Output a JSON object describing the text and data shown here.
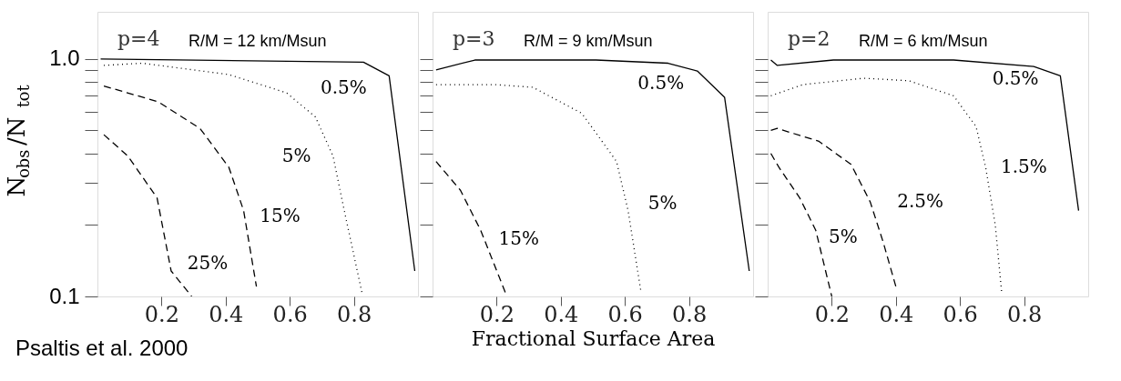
{
  "chart_data": [
    {
      "type": "line",
      "title": "p=4",
      "subtitle": "R/M = 12 km/Msun",
      "ylabel": "N$_{obs}$/N$_{tot}$",
      "xlim": [
        0,
        1
      ],
      "ylim": [
        0.1,
        1.58
      ],
      "log": "y",
      "grid": false,
      "xticks": [
        0.2,
        0.4,
        0.6,
        0.8
      ],
      "yticks": [
        {
          "value": 0.1,
          "label": "0.1"
        },
        {
          "value": 0.2,
          "label": null
        },
        {
          "value": 0.3,
          "label": null
        },
        {
          "value": 0.4,
          "label": null
        },
        {
          "value": 0.5,
          "label": null
        },
        {
          "value": 0.6,
          "label": null
        },
        {
          "value": 0.7,
          "label": null
        },
        {
          "value": 0.8,
          "label": null
        },
        {
          "value": 0.9,
          "label": null
        },
        {
          "value": 1,
          "label": "1.0"
        }
      ],
      "series": [
        {
          "name": "0.5%",
          "color": "#000000",
          "line_style": "solid",
          "x": [
            0.01,
            0.83,
            0.91,
            0.99
          ],
          "values": [
            1.0,
            0.97,
            0.85,
            0.128
          ]
        },
        {
          "name": "5%",
          "color": "#000000",
          "line_style": "dotted",
          "x": [
            0.02,
            0.14,
            0.41,
            0.59,
            0.68,
            0.735,
            0.77,
            0.825
          ],
          "values": [
            0.94,
            0.96,
            0.86,
            0.72,
            0.57,
            0.39,
            0.23,
            0.104
          ]
        },
        {
          "name": "15%",
          "color": "#000000",
          "line_style": "dashed",
          "x": [
            0.02,
            0.19,
            0.32,
            0.41,
            0.456,
            0.496
          ],
          "values": [
            0.77,
            0.66,
            0.51,
            0.35,
            0.23,
            0.11
          ]
        },
        {
          "name": "25%",
          "color": "#000000",
          "line_style": "dashed",
          "x": [
            0.02,
            0.095,
            0.186,
            0.23,
            0.294
          ],
          "values": [
            0.48,
            0.39,
            0.26,
            0.128,
            0.1
          ]
        }
      ],
      "annotations": [
        "Psaltis et al. 2000"
      ]
    },
    {
      "type": "line",
      "title": "p=3",
      "subtitle": "R/M = 9 km/Msun",
      "xlabel": "Fractional Surface Area",
      "xlim": [
        0,
        1
      ],
      "ylim": [
        0.1,
        1.58
      ],
      "log": "y",
      "grid": false,
      "tick_labels": "x",
      "xticks": [
        0.2,
        0.4,
        0.6,
        0.8
      ],
      "yticks": [
        {
          "value": 0.1,
          "label": null
        },
        {
          "value": 0.2,
          "label": null
        },
        {
          "value": 0.3,
          "label": null
        },
        {
          "value": 0.4,
          "label": null
        },
        {
          "value": 0.5,
          "label": null
        },
        {
          "value": 0.6,
          "label": null
        },
        {
          "value": 0.7,
          "label": null
        },
        {
          "value": 0.8,
          "label": null
        },
        {
          "value": 0.9,
          "label": null
        },
        {
          "value": 1,
          "label": null
        }
      ],
      "series": [
        {
          "name": "0.5%",
          "color": "#000000",
          "line_style": "solid",
          "x": [
            0.011,
            0.132,
            0.51,
            0.735,
            0.826,
            0.911,
            0.988
          ],
          "values": [
            0.9,
            0.99,
            0.99,
            0.96,
            0.89,
            0.69,
            0.128
          ]
        },
        {
          "name": "5%",
          "color": "#000000",
          "line_style": "dotted",
          "x": [
            0.011,
            0.195,
            0.313,
            0.466,
            0.574,
            0.61,
            0.65
          ],
          "values": [
            0.78,
            0.78,
            0.76,
            0.59,
            0.37,
            0.23,
            0.105
          ]
        },
        {
          "name": "15%",
          "color": "#000000",
          "line_style": "dashed",
          "x": [
            0.011,
            0.087,
            0.15,
            0.232
          ],
          "values": [
            0.37,
            0.28,
            0.19,
            0.1
          ]
        }
      ]
    },
    {
      "type": "line",
      "title": "p=2",
      "subtitle": "R/M = 6 km/Msun",
      "xlim": [
        0,
        1
      ],
      "ylim": [
        0.1,
        1.58
      ],
      "log": "y",
      "grid": false,
      "tick_labels": "x",
      "xticks": [
        0.2,
        0.4,
        0.6,
        0.8
      ],
      "yticks": [
        {
          "value": 0.1,
          "label": null
        },
        {
          "value": 0.2,
          "label": null
        },
        {
          "value": 0.3,
          "label": null
        },
        {
          "value": 0.4,
          "label": null
        },
        {
          "value": 0.5,
          "label": null
        },
        {
          "value": 0.6,
          "label": null
        },
        {
          "value": 0.7,
          "label": null
        },
        {
          "value": 0.8,
          "label": null
        },
        {
          "value": 0.9,
          "label": null
        },
        {
          "value": 1,
          "label": null
        }
      ],
      "series": [
        {
          "name": "0.5%",
          "color": "#000000",
          "line_style": "solid",
          "x": [
            0.01,
            0.03,
            0.205,
            0.58,
            0.83,
            0.913,
            0.97
          ],
          "values": [
            0.99,
            0.94,
            0.99,
            0.99,
            0.93,
            0.85,
            0.23
          ]
        },
        {
          "name": "1.5%",
          "color": "#000000",
          "line_style": "dotted",
          "x": [
            0.01,
            0.11,
            0.3,
            0.44,
            0.58,
            0.65,
            0.68,
            0.71,
            0.73
          ],
          "values": [
            0.7,
            0.78,
            0.83,
            0.81,
            0.7,
            0.52,
            0.35,
            0.2,
            0.104
          ]
        },
        {
          "name": "2.5%",
          "color": "#000000",
          "line_style": "dashed",
          "x": [
            0.01,
            0.03,
            0.16,
            0.26,
            0.32,
            0.36,
            0.4
          ],
          "values": [
            0.5,
            0.51,
            0.45,
            0.36,
            0.25,
            0.17,
            0.11
          ]
        },
        {
          "name": "5%",
          "color": "#000000",
          "line_style": "dashed",
          "x": [
            0.01,
            0.035,
            0.1,
            0.15,
            0.2
          ],
          "values": [
            0.4,
            0.35,
            0.26,
            0.19,
            0.1
          ]
        }
      ]
    }
  ]
}
